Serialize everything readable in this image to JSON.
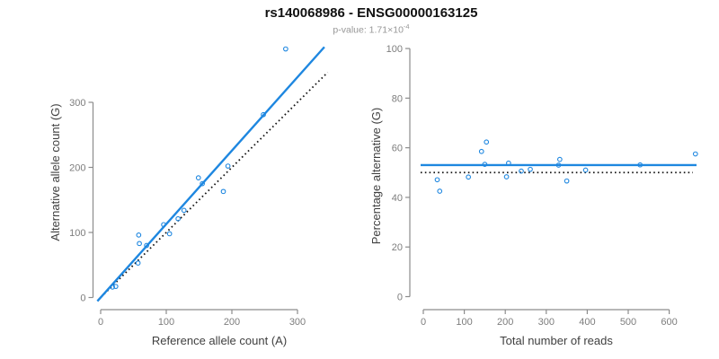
{
  "header": {
    "title": "rs140068986 - ENSG00000163125",
    "pvalue_prefix": "p-value: 1.71×10",
    "pvalue_exponent": "-4"
  },
  "colors": {
    "accent_blue": "#1e87e0",
    "dotted_black": "#141414",
    "axis_gray": "#8c8c8c",
    "tick_label_gray": "#7d7d7d",
    "axis_title_gray": "#3f3f3f",
    "title_black": "#111111",
    "subtitle_gray": "#979797",
    "background": "#ffffff"
  },
  "chart_data": [
    {
      "id": "allele-counts-scatter",
      "type": "scatter",
      "xlabel": "Reference allele count (A)",
      "ylabel": "Alternative allele count (G)",
      "xticks": [
        0,
        100,
        200,
        300
      ],
      "yticks": [
        0,
        100,
        200,
        300
      ],
      "xlim": [
        0,
        340
      ],
      "ylim": [
        0,
        390
      ],
      "grid": false,
      "legend": "none",
      "points": [
        [
          18,
          16
        ],
        [
          23,
          17
        ],
        [
          57,
          53
        ],
        [
          58,
          96
        ],
        [
          59,
          83
        ],
        [
          70,
          80
        ],
        [
          96,
          112
        ],
        [
          105,
          98
        ],
        [
          118,
          121
        ],
        [
          127,
          134
        ],
        [
          149,
          184
        ],
        [
          155,
          175
        ],
        [
          187,
          163
        ],
        [
          194,
          202
        ],
        [
          248,
          281
        ],
        [
          282,
          382
        ]
      ],
      "fit_line": {
        "slope": 1.129,
        "intercept": 0,
        "style": "solid",
        "meaning": "fitted allelic ratio"
      },
      "reference_line": {
        "slope": 1,
        "intercept": 0,
        "style": "dotted",
        "meaning": "identity y = x"
      }
    },
    {
      "id": "percentage-alternative-scatter",
      "type": "scatter",
      "xlabel": "Total number of reads",
      "ylabel": "Percentage alternative (G)",
      "xticks": [
        0,
        100,
        200,
        300,
        400,
        500,
        600
      ],
      "yticks": [
        0,
        20,
        40,
        60,
        80,
        100
      ],
      "xlim": [
        0,
        680
      ],
      "ylim": [
        0,
        100
      ],
      "grid": false,
      "legend": "none",
      "points": [
        [
          34,
          47.1
        ],
        [
          40,
          42.5
        ],
        [
          110,
          48.2
        ],
        [
          142,
          58.5
        ],
        [
          150,
          53.3
        ],
        [
          154,
          62.3
        ],
        [
          203,
          48.3
        ],
        [
          208,
          53.8
        ],
        [
          239,
          50.6
        ],
        [
          261,
          51.3
        ],
        [
          330,
          53.0
        ],
        [
          333,
          55.3
        ],
        [
          350,
          46.6
        ],
        [
          396,
          51.0
        ],
        [
          529,
          53.1
        ],
        [
          664,
          57.5
        ]
      ],
      "fit_line": {
        "y": 53.0,
        "style": "solid",
        "meaning": "fitted mean percentage"
      },
      "reference_line": {
        "y": 50,
        "style": "dotted",
        "meaning": "null expectation 50%"
      }
    }
  ]
}
